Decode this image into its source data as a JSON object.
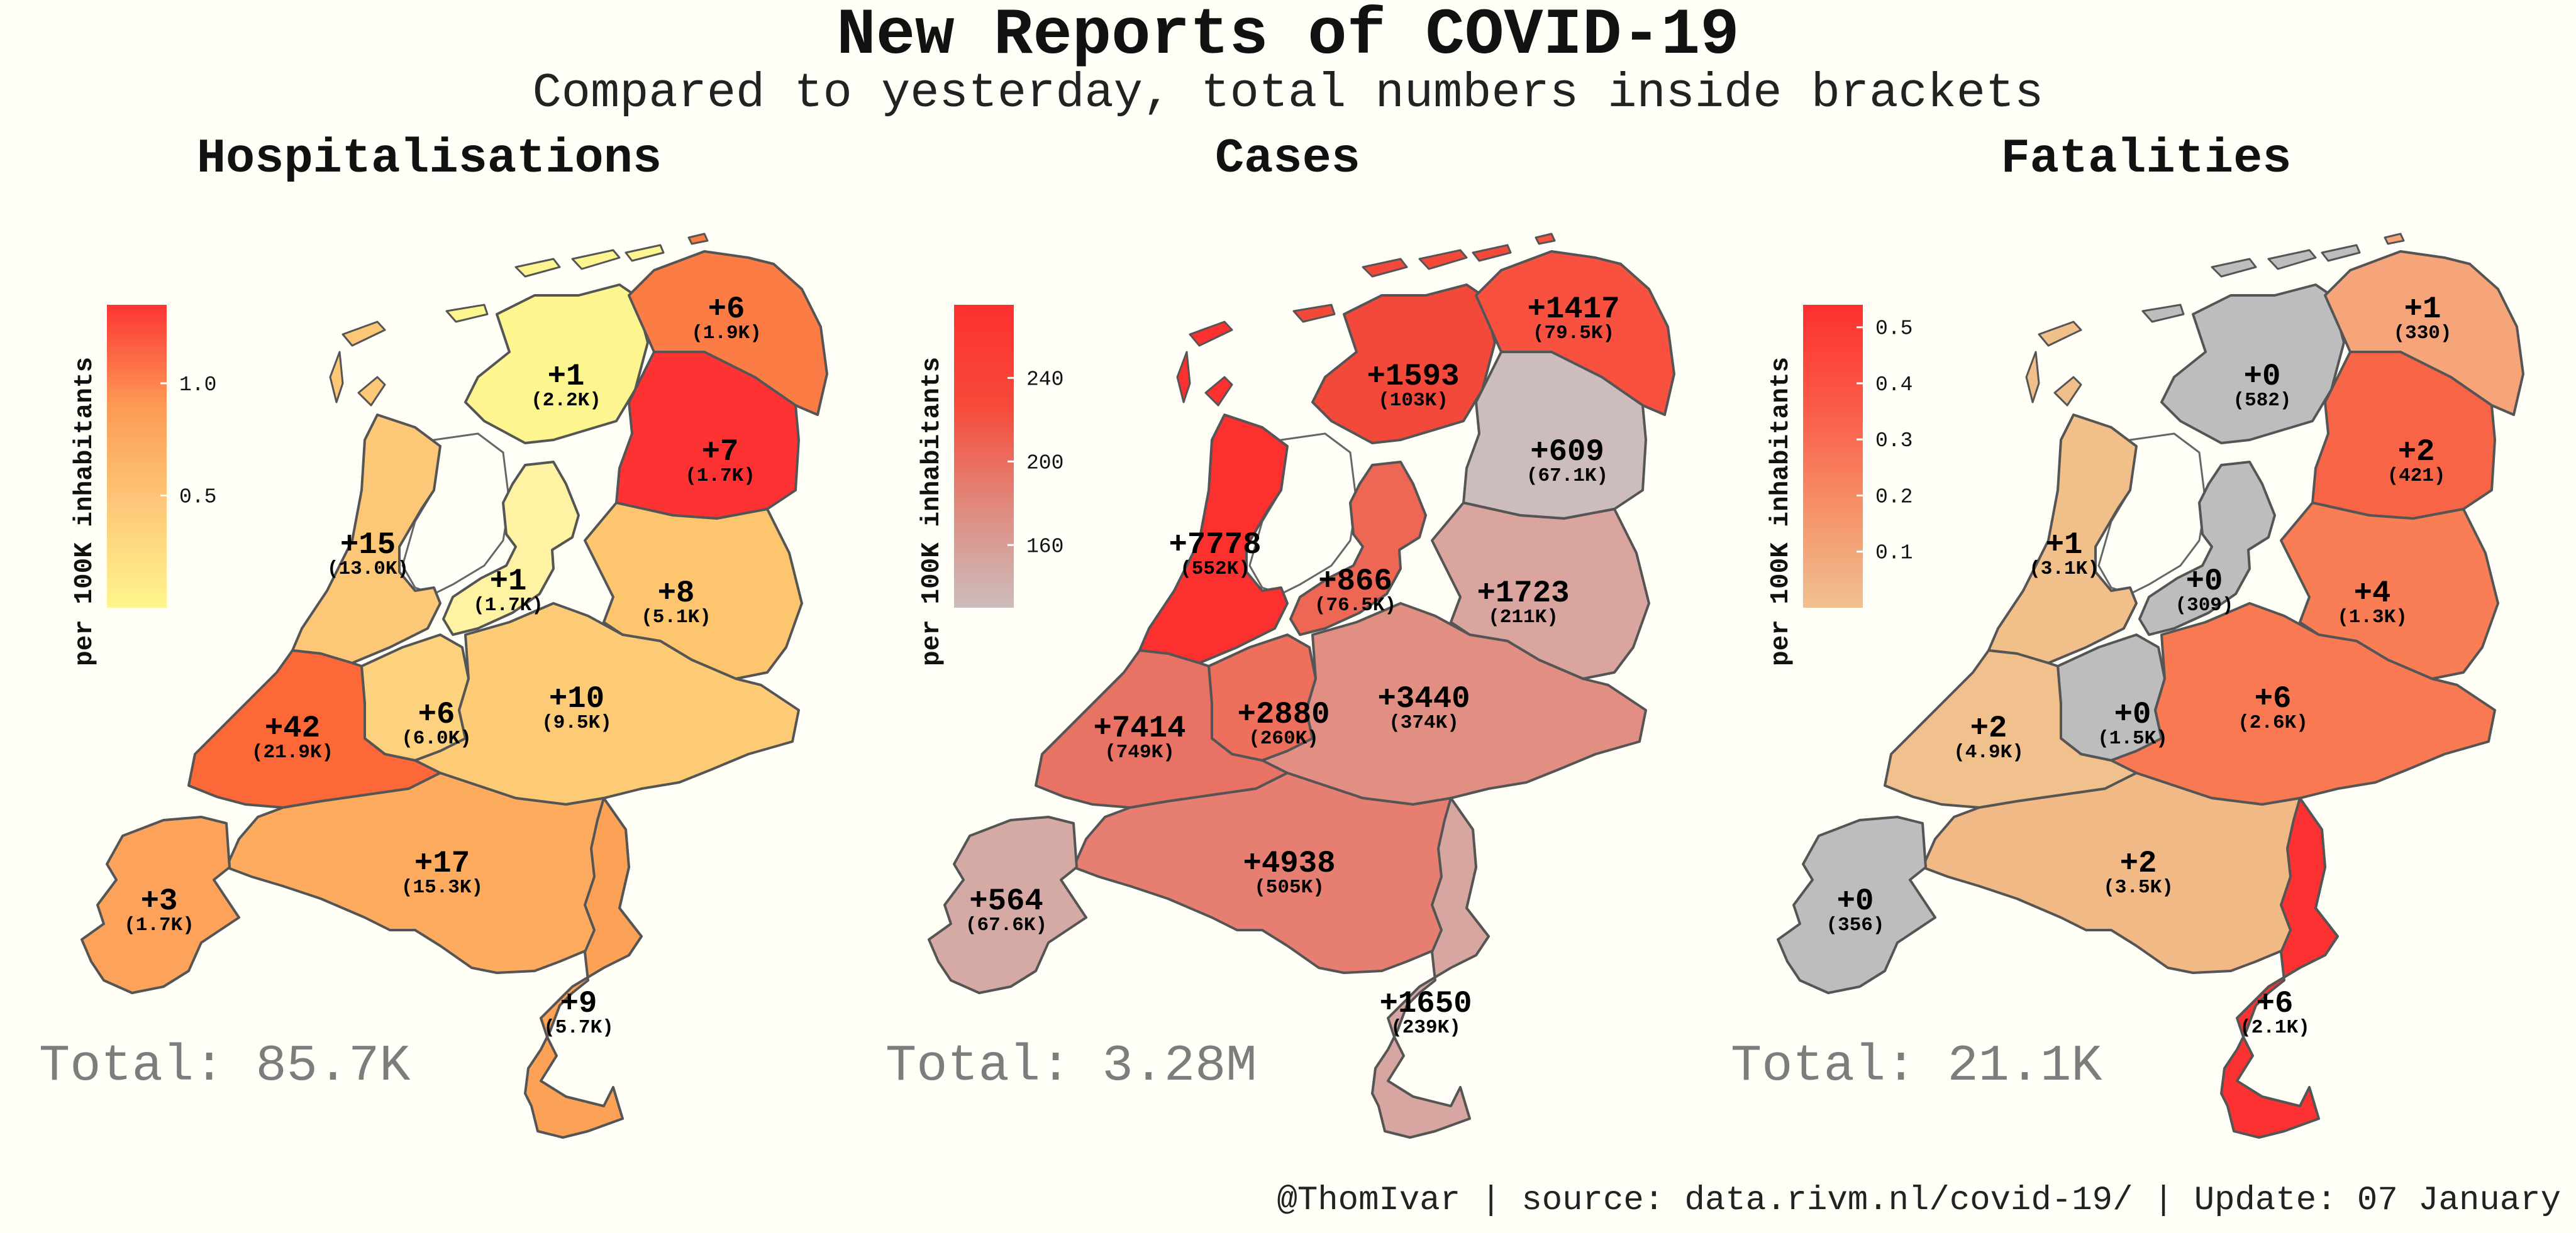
{
  "title": "New Reports of COVID-19",
  "subtitle": "Compared to yesterday, total numbers inside brackets",
  "footer": "@ThomIvar | source: data.rivm.nl/covid-19/ | Update: 07 January",
  "panels": [
    {
      "name": "Hospitalisations",
      "total": "Total: 85.7K",
      "legend_title": "per 100K inhabitants",
      "legend_ticks": [
        "1.0",
        "0.5"
      ],
      "legend_range": [
        0.0,
        1.35
      ],
      "legend_tick_values": [
        1.0,
        0.5
      ],
      "scale_colors": [
        "#fff58c",
        "#fdc97a",
        "#fd9a55",
        "#fd3535"
      ],
      "regions": {
        "groningen": {
          "daily": "+6",
          "total": "(1.9K)",
          "color": "#fc7c46"
        },
        "friesland": {
          "daily": "+1",
          "total": "(2.2K)",
          "color": "#fdf58f"
        },
        "drenthe": {
          "daily": "+7",
          "total": "(1.7K)",
          "color": "#fd3232"
        },
        "flevoland": {
          "daily": "+1",
          "total": "(1.7K)",
          "color": "#fef3a3"
        },
        "noord_holland": {
          "daily": "+15",
          "total": "(13.0K)",
          "color": "#fdc778"
        },
        "overijssel": {
          "daily": "+8",
          "total": "(5.1K)",
          "color": "#fdc66e"
        },
        "utrecht": {
          "daily": "+6",
          "total": "(6.0K)",
          "color": "#fdd27e"
        },
        "gelderland": {
          "daily": "+10",
          "total": "(9.5K)",
          "color": "#fdcb76"
        },
        "zuid_holland": {
          "daily": "+42",
          "total": "(21.9K)",
          "color": "#fc6838"
        },
        "noord_brabant": {
          "daily": "+17",
          "total": "(15.3K)",
          "color": "#fdac5f"
        },
        "zeeland": {
          "daily": "+3",
          "total": "(1.7K)",
          "color": "#fca25a"
        },
        "limburg": {
          "daily": "+9",
          "total": "(5.7K)",
          "color": "#fca257"
        }
      }
    },
    {
      "name": "Cases",
      "total": "Total: 3.28M",
      "legend_title": "per 100K inhabitants",
      "legend_ticks": [
        "240",
        "200",
        "160"
      ],
      "legend_range": [
        130,
        275
      ],
      "legend_tick_values": [
        240,
        200,
        160
      ],
      "scale_colors": [
        "#ccbcbc",
        "#e08a7d",
        "#f74a3a",
        "#fd3030"
      ],
      "regions": {
        "groningen": {
          "daily": "+1417",
          "total": "(79.5K)",
          "color": "#f95140"
        },
        "friesland": {
          "daily": "+1593",
          "total": "(103K)",
          "color": "#f3493b"
        },
        "drenthe": {
          "daily": "+609",
          "total": "(67.1K)",
          "color": "#cdbcbc"
        },
        "flevoland": {
          "daily": "+866",
          "total": "(76.5K)",
          "color": "#ee6654"
        },
        "noord_holland": {
          "daily": "+7778",
          "total": "(552K)",
          "color": "#fd3030"
        },
        "overijssel": {
          "daily": "+1723",
          "total": "(211K)",
          "color": "#d9a59e"
        },
        "utrecht": {
          "daily": "+2880",
          "total": "(260K)",
          "color": "#ee6f5c"
        },
        "gelderland": {
          "daily": "+3440",
          "total": "(374K)",
          "color": "#e08f82"
        },
        "zuid_holland": {
          "daily": "+7414",
          "total": "(749K)",
          "color": "#e87264"
        },
        "noord_brabant": {
          "daily": "+4938",
          "total": "(505K)",
          "color": "#e67f71"
        },
        "zeeland": {
          "daily": "+564",
          "total": "(67.6K)",
          "color": "#d6aaa4"
        },
        "limburg": {
          "daily": "+1650",
          "total": "(239K)",
          "color": "#d7a6a0"
        }
      }
    },
    {
      "name": "Fatalities",
      "total": "Total: 21.1K",
      "legend_title": "per 100K inhabitants",
      "legend_ticks": [
        "0.5",
        "0.4",
        "0.3",
        "0.2",
        "0.1"
      ],
      "legend_range": [
        0.0,
        0.54
      ],
      "legend_tick_values": [
        0.5,
        0.4,
        0.3,
        0.2,
        0.1
      ],
      "scale_colors": [
        "#f0c190",
        "#f69068",
        "#fa5a48",
        "#fd3030"
      ],
      "regions": {
        "groningen": {
          "daily": "+1",
          "total": "(330)",
          "color": "#f5a579"
        },
        "friesland": {
          "daily": "+0",
          "total": "(582)",
          "color": "#bdbdbd"
        },
        "drenthe": {
          "daily": "+2",
          "total": "(421)",
          "color": "#f86446"
        },
        "flevoland": {
          "daily": "+0",
          "total": "(309)",
          "color": "#bdbdbd"
        },
        "noord_holland": {
          "daily": "+1",
          "total": "(3.1K)",
          "color": "#f0bf8a"
        },
        "overijssel": {
          "daily": "+4",
          "total": "(1.3K)",
          "color": "#f97e55"
        },
        "utrecht": {
          "daily": "+0",
          "total": "(1.5K)",
          "color": "#bdbdbd"
        },
        "gelderland": {
          "daily": "+6",
          "total": "(2.6K)",
          "color": "#f97a52"
        },
        "zuid_holland": {
          "daily": "+2",
          "total": "(4.9K)",
          "color": "#f0c08d"
        },
        "noord_brabant": {
          "daily": "+2",
          "total": "(3.5K)",
          "color": "#f0b985"
        },
        "zeeland": {
          "daily": "+0",
          "total": "(356)",
          "color": "#bdbdbd"
        },
        "limburg": {
          "daily": "+6",
          "total": "(2.1K)",
          "color": "#fc3232"
        }
      }
    }
  ]
}
